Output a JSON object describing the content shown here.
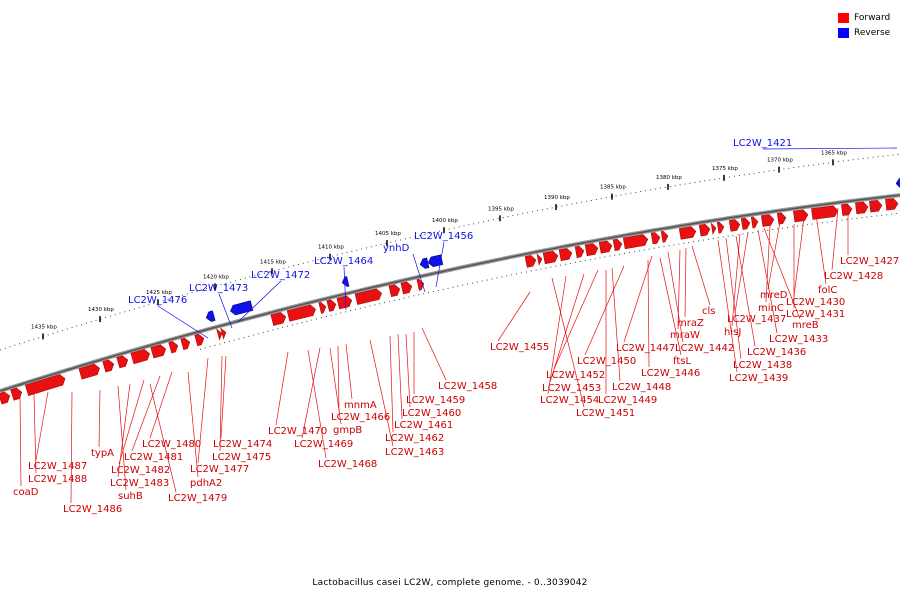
{
  "legend": {
    "forward": {
      "label": "Forward",
      "color": "#ff0000"
    },
    "reverse": {
      "label": "Reverse",
      "color": "#0000ff"
    }
  },
  "caption": "Lactobacillus casei LC2W, complete genome. - 0..3039042",
  "colors": {
    "forward": "#e81010",
    "forward_dark": "#a00000",
    "reverse": "#1010e8",
    "backbone": "#777777"
  },
  "ticks": [
    "1435 kbp",
    "1430 kbp",
    "1425 kbp",
    "1420 kbp",
    "1415 kbp",
    "1410 kbp",
    "1405 kbp",
    "1400 kbp",
    "1395 kbp",
    "1390 kbp",
    "1385 kbp",
    "1380 kbp",
    "1375 kbp",
    "1370 kbp",
    "1365 kbp"
  ],
  "reverse_labels": [
    "LC2W_1421",
    "LC2W_1456",
    "ynhD",
    "LC2W_1464",
    "LC2W_1472",
    "LC2W_1473",
    "LC2W_1476"
  ],
  "forward_labels": [
    "LC2W_1427",
    "LC2W_1428",
    "folC",
    "LC2W_1430",
    "mreD",
    "LC2W_1431",
    "minC",
    "mreB",
    "LC2W_1433",
    "LC2W_1437",
    "hisJ",
    "LC2W_1436",
    "LC2W_1438",
    "LC2W_1439",
    "cls",
    "mraZ",
    "mraW",
    "LC2W_1442",
    "LC2W_1447",
    "ftsL",
    "LC2W_1446",
    "LC2W_1450",
    "LC2W_1448",
    "LC2W_1452",
    "LC2W_1449",
    "LC2W_1453",
    "LC2W_1454",
    "LC2W_1451",
    "LC2W_1455",
    "LC2W_1458",
    "LC2W_1459",
    "LC2W_1460",
    "LC2W_1461",
    "LC2W_1462",
    "LC2W_1463",
    "mnmA",
    "LC2W_1466",
    "gmpB",
    "LC2W_1470",
    "LC2W_1469",
    "LC2W_1468",
    "LC2W_1474",
    "LC2W_1475",
    "LC2W_1477",
    "LC2W_1480",
    "LC2W_1481",
    "LC2W_1482",
    "LC2W_1483",
    "pdhA2",
    "suhB",
    "LC2W_1479",
    "typA",
    "LC2W_1487",
    "LC2W_1488",
    "coaD",
    "LC2W_1486"
  ]
}
